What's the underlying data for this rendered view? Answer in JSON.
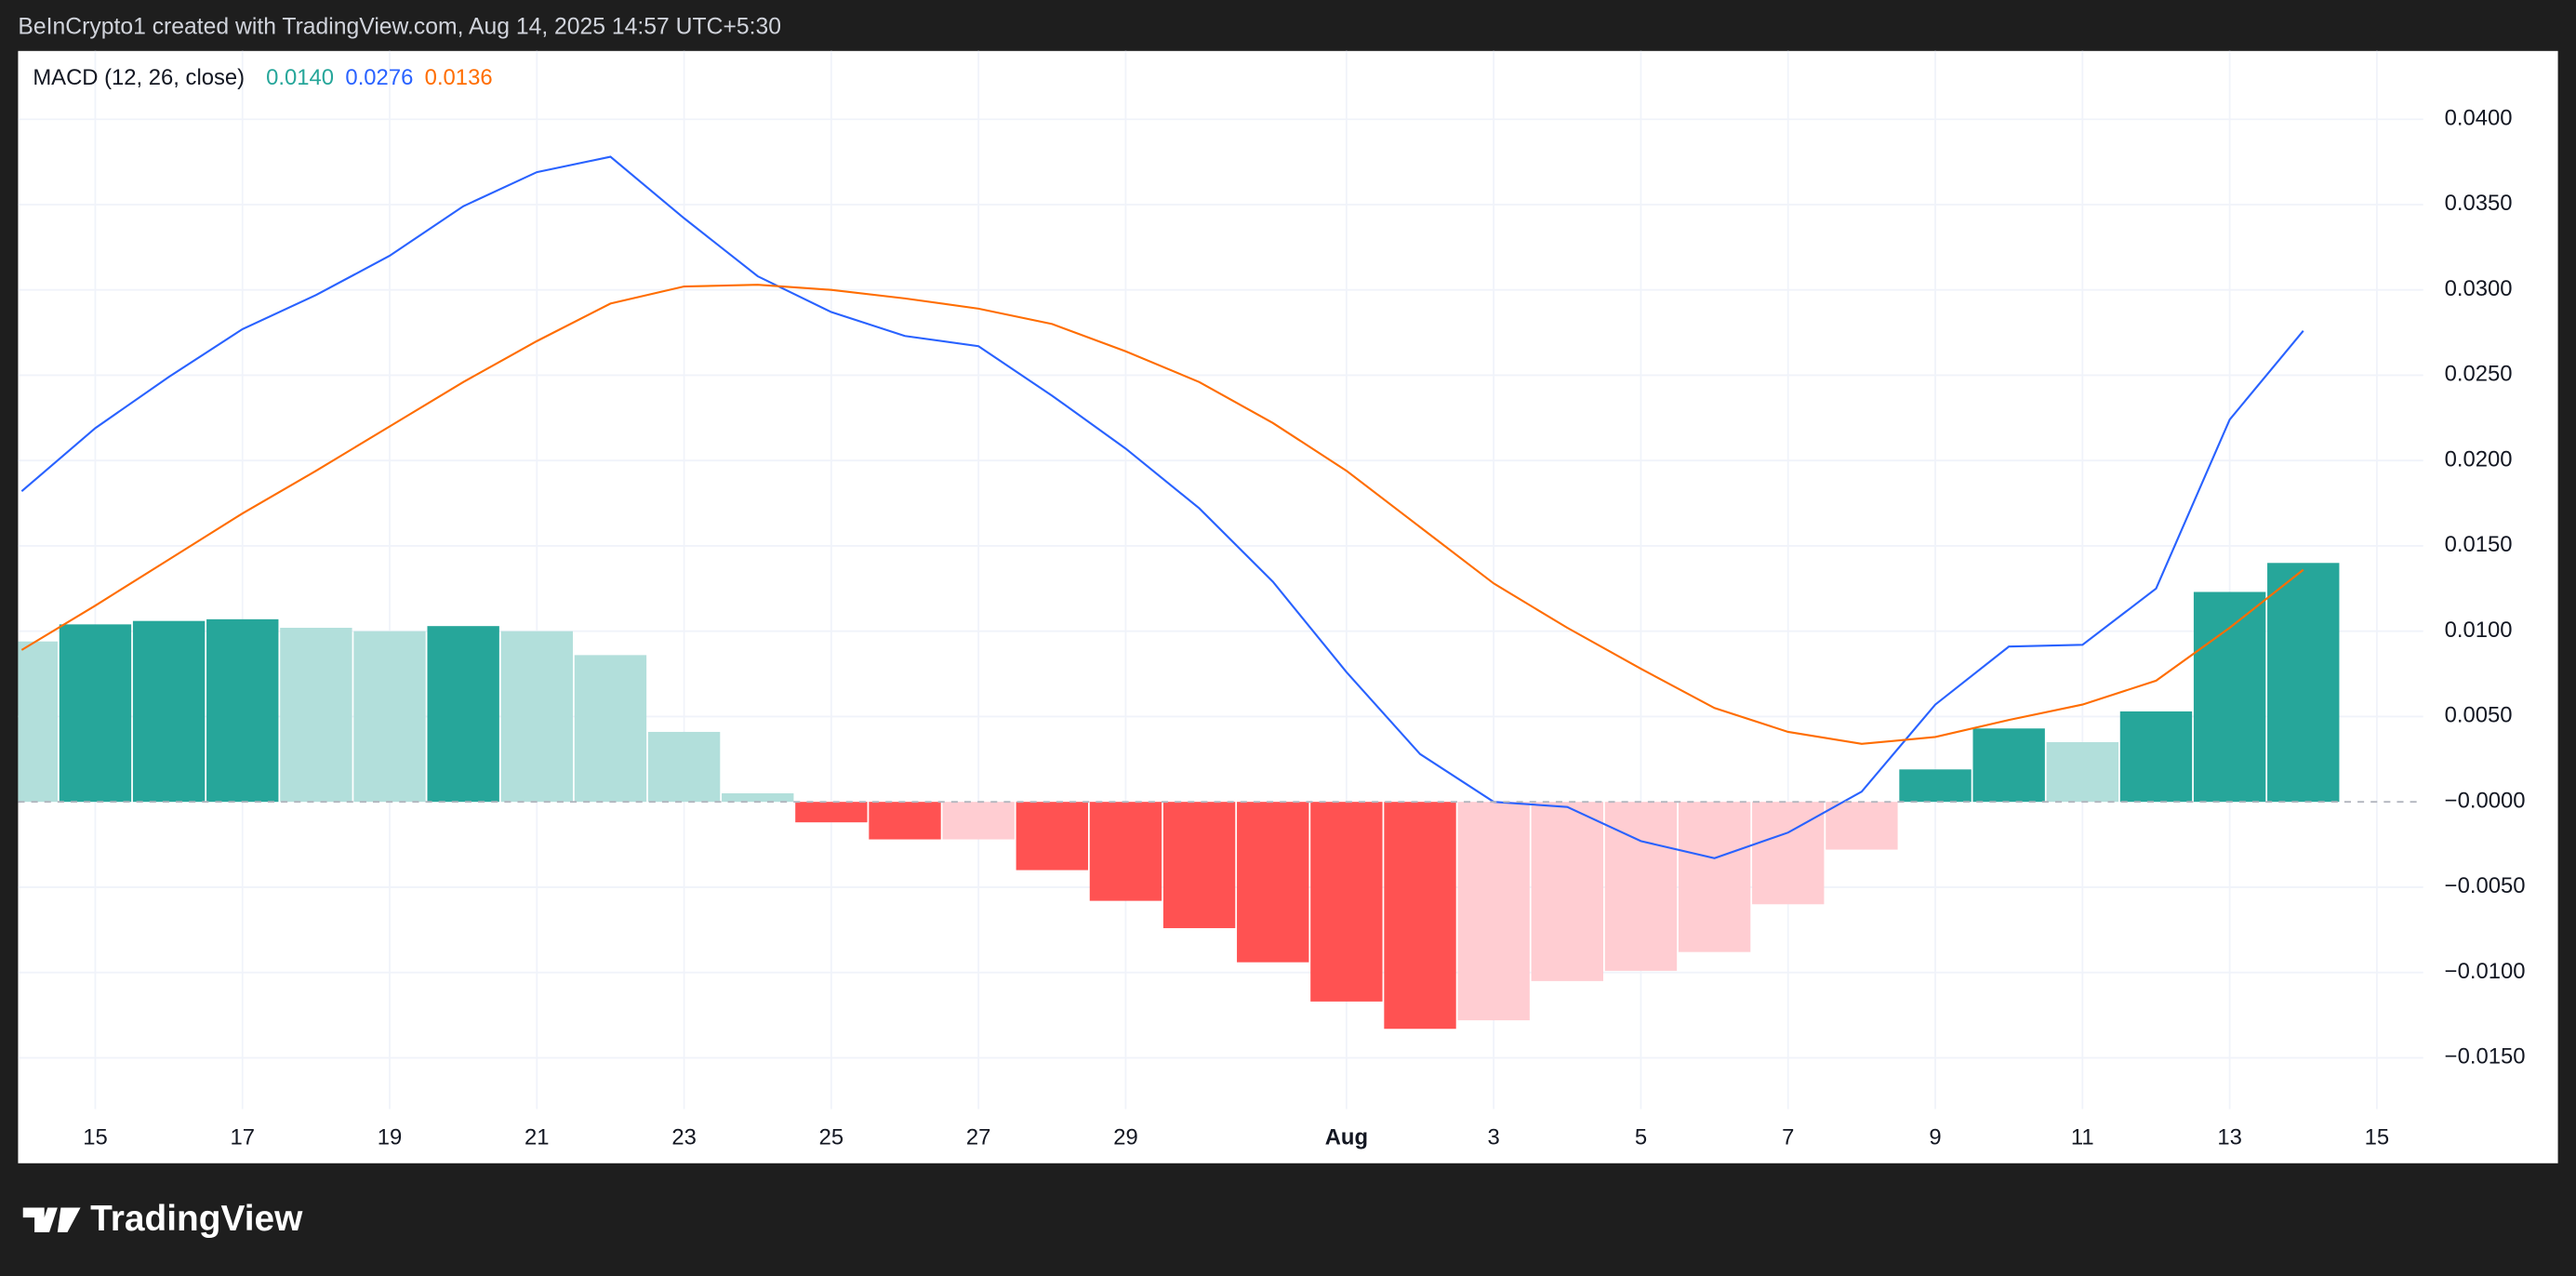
{
  "header": "BeInCrypto1 created with TradingView.com, Aug 14, 2025 14:57 UTC+5:30",
  "footer": "TradingView",
  "chart_data": {
    "type": "macd",
    "legend_label": "MACD (12, 26, close)",
    "legend_values": [
      {
        "text": "0.0140",
        "color": "#26a69a"
      },
      {
        "text": "0.0276",
        "color": "#2962ff"
      },
      {
        "text": "0.0136",
        "color": "#ff6d00"
      }
    ],
    "categories": [
      null,
      "15",
      null,
      "17",
      null,
      "19",
      null,
      "21",
      null,
      "23",
      null,
      "25",
      null,
      "27",
      null,
      "29",
      null,
      null,
      "Aug",
      null,
      "3",
      null,
      "5",
      null,
      "7",
      null,
      "9",
      null,
      "11",
      null,
      "13",
      null,
      "15"
    ],
    "histogram": {
      "values": [
        0.0094,
        0.0104,
        0.0106,
        0.0107,
        0.0102,
        0.01,
        0.0103,
        0.01,
        0.0086,
        0.0041,
        0.0005,
        -0.0012,
        -0.0022,
        -0.0022,
        -0.004,
        -0.0058,
        -0.0074,
        -0.0094,
        -0.0117,
        -0.0133,
        -0.0128,
        -0.0105,
        -0.0099,
        -0.0088,
        -0.006,
        -0.0028,
        0.0019,
        0.0043,
        0.0035,
        0.0053,
        0.0123,
        0.014,
        null
      ],
      "colors": [
        "#b2dfdb",
        "#26a69a",
        "#26a69a",
        "#26a69a",
        "#b2dfdb",
        "#b2dfdb",
        "#26a69a",
        "#b2dfdb",
        "#b2dfdb",
        "#b2dfdb",
        "#b2dfdb",
        "#ff5252",
        "#ff5252",
        "#ffcdd2",
        "#ff5252",
        "#ff5252",
        "#ff5252",
        "#ff5252",
        "#ff5252",
        "#ff5252",
        "#ffcdd2",
        "#ffcdd2",
        "#ffcdd2",
        "#ffcdd2",
        "#ffcdd2",
        "#ffcdd2",
        "#26a69a",
        "#26a69a",
        "#b2dfdb",
        "#26a69a",
        "#26a69a",
        "#26a69a",
        null
      ]
    },
    "series": [
      {
        "color": "#2962ff",
        "values": [
          0.0182,
          0.0219,
          0.0249,
          0.0277,
          0.0297,
          0.032,
          0.0349,
          0.0369,
          0.0378,
          0.0342,
          0.0308,
          0.0287,
          0.0273,
          0.0267,
          0.0238,
          0.0207,
          0.0172,
          0.0129,
          0.0076,
          0.0028,
          0.0,
          -0.0003,
          -0.0023,
          -0.0033,
          -0.0018,
          0.0006,
          0.0057,
          0.0091,
          0.0092,
          0.0125,
          0.0224,
          0.0276,
          null
        ]
      },
      {
        "color": "#ff6d00",
        "values": [
          0.0089,
          0.0115,
          0.0142,
          0.0169,
          0.0194,
          0.022,
          0.0246,
          0.027,
          0.0292,
          0.0302,
          0.0303,
          0.03,
          0.0295,
          0.0289,
          0.028,
          0.0264,
          0.0246,
          0.0222,
          0.0194,
          0.0161,
          0.0128,
          0.0102,
          0.0078,
          0.0055,
          0.0041,
          0.0034,
          0.0038,
          0.0048,
          0.0057,
          0.0071,
          0.0102,
          0.0136,
          null
        ]
      }
    ],
    "ylim": [
      -0.018,
      0.044
    ],
    "yticks": [
      {
        "value": 0.04,
        "label": "0.0400"
      },
      {
        "value": 0.035,
        "label": "0.0350"
      },
      {
        "value": 0.03,
        "label": "0.0300"
      },
      {
        "value": 0.025,
        "label": "0.0250"
      },
      {
        "value": 0.02,
        "label": "0.0200"
      },
      {
        "value": 0.015,
        "label": "0.0150"
      },
      {
        "value": 0.01,
        "label": "0.0100"
      },
      {
        "value": 0.005,
        "label": "0.0050"
      },
      {
        "value": 0,
        "label": "−0.0000"
      },
      {
        "value": -0.005,
        "label": "−0.0050"
      },
      {
        "value": -0.01,
        "label": "−0.0100"
      },
      {
        "value": -0.015,
        "label": "−0.0150"
      }
    ],
    "grid": true
  }
}
